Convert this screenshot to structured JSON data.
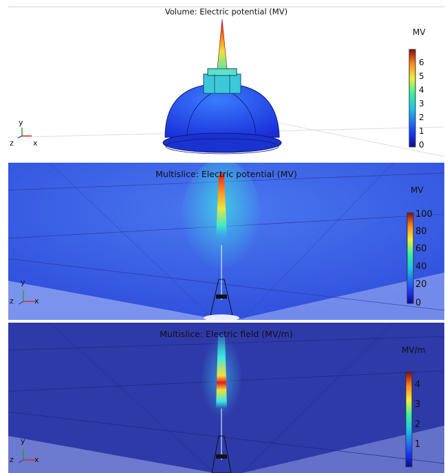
{
  "panels": [
    {
      "title": "Volume: Electric potential (MV)",
      "unit": "MV",
      "ticks": [
        "6",
        "5",
        "4",
        "3",
        "2",
        "1",
        "0"
      ],
      "axes": {
        "x": "x",
        "y": "y",
        "z": "z"
      }
    },
    {
      "title": "Multislice: Electric potential (MV)",
      "unit": "MV",
      "ticks": [
        "100",
        "80",
        "60",
        "40",
        "20",
        "0"
      ],
      "axes": {
        "x": "x",
        "y": "y",
        "z": "z"
      }
    },
    {
      "title": "Multislice: Electric field (MV/m)",
      "unit": "MV/m",
      "ticks": [
        "4",
        "3",
        "2",
        "1"
      ],
      "axes": {
        "x": "x",
        "y": "y",
        "z": "z"
      }
    }
  ],
  "colors": {
    "rainbow": [
      "#0a0a9a",
      "#1a3cff",
      "#1ec8e6",
      "#3cf0a0",
      "#f0f03c",
      "#ff8c1e",
      "#e61e1e",
      "#8c0a0a"
    ],
    "field_bg": "#3a55e0",
    "field_bg_dark": "#2e3a9c"
  }
}
